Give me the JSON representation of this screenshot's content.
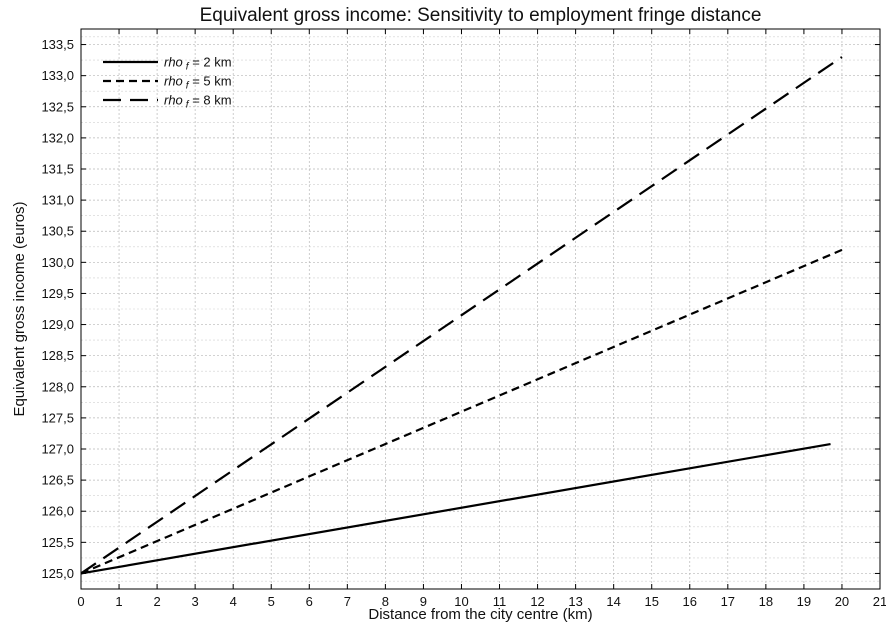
{
  "chart_data": {
    "type": "line",
    "title": "Equivalent gross income: Sensitivity to employment fringe distance",
    "xlabel": "Distance from the city centre (km)",
    "ylabel": "Equivalent gross income (euros)",
    "xlim": [
      0,
      21
    ],
    "ylim": [
      124.75,
      133.75
    ],
    "xticks": [
      "0",
      "1",
      "2",
      "3",
      "4",
      "5",
      "6",
      "7",
      "8",
      "9",
      "10",
      "11",
      "12",
      "13",
      "14",
      "15",
      "16",
      "17",
      "18",
      "19",
      "20",
      "21"
    ],
    "yticks": [
      "125,0",
      "125,5",
      "126,0",
      "126,5",
      "127,0",
      "127,5",
      "128,0",
      "128,5",
      "129,0",
      "129,5",
      "130,0",
      "130,5",
      "131,0",
      "131,5",
      "132,0",
      "132,5",
      "133,0",
      "133,5"
    ],
    "grid": true,
    "legend_position": "top-left",
    "series": [
      {
        "legend": {
          "prefix": "rho",
          "sub": "f",
          "suffix": " = 2 km"
        },
        "style": "solid",
        "color": "#000000",
        "x": [
          0,
          19.7
        ],
        "y": [
          125.0,
          127.08
        ]
      },
      {
        "legend": {
          "prefix": "rho",
          "sub": "f",
          "suffix": " = 5 km"
        },
        "style": "short-dash",
        "color": "#000000",
        "x": [
          0,
          20
        ],
        "y": [
          125.0,
          130.2
        ]
      },
      {
        "legend": {
          "prefix": "rho",
          "sub": "f",
          "suffix": " = 8 km"
        },
        "style": "long-dash",
        "color": "#000000",
        "x": [
          0,
          20
        ],
        "y": [
          125.0,
          133.3
        ]
      }
    ]
  }
}
